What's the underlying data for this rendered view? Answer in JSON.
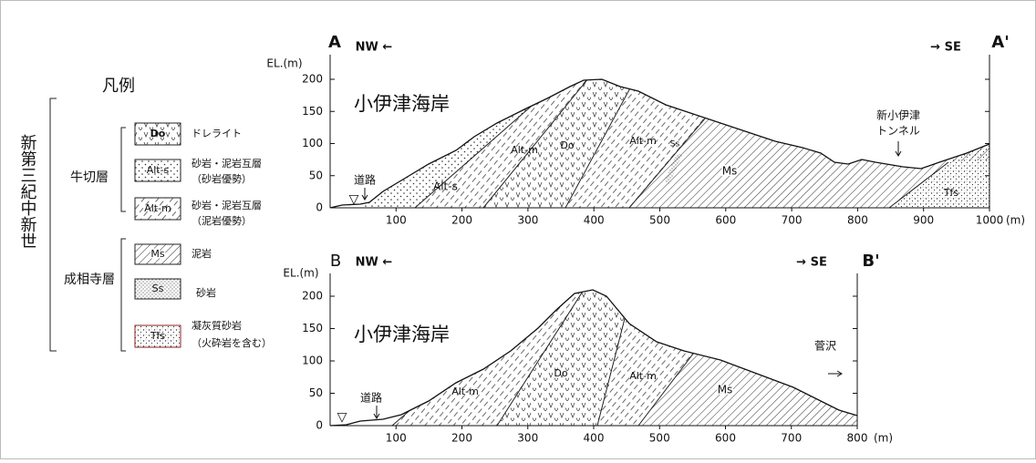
{
  "legend": {
    "title": "凡例",
    "era": "新第三紀中新世",
    "groups": [
      {
        "name": "牛切層",
        "items": [
          {
            "symbol": "Do",
            "label": "ドレライト"
          },
          {
            "symbol": "Alt-s",
            "label": "砂岩・泥岩互層",
            "note": "（砂岩優勢）"
          },
          {
            "symbol": "Alt-m",
            "label": "砂岩・泥岩互層",
            "note": "（泥岩優勢）"
          }
        ]
      },
      {
        "name": "成相寺層",
        "items": [
          {
            "symbol": "Ms",
            "label": "泥岩"
          },
          {
            "symbol": "Ss",
            "label": "砂岩"
          },
          {
            "symbol": "Tfs",
            "label": "凝灰質砂岩",
            "note": "（火砕岩を含む）"
          }
        ]
      }
    ]
  },
  "sections": [
    {
      "left_id": "A",
      "right_id": "A'",
      "left_dir": "NW ←",
      "right_dir": "→ SE",
      "y_axis_label": "EL.(m)",
      "x_unit": "(m)",
      "yticks": [
        0,
        50,
        100,
        150,
        200
      ],
      "xticks": [
        100,
        200,
        300,
        400,
        500,
        600,
        700,
        800,
        900,
        1000
      ],
      "place": "小伊津海岸",
      "road": "道路",
      "units": [
        "Alt-s",
        "Alt-m",
        "Do",
        "Alt-m",
        "Ms",
        "Ss",
        "Tfs"
      ],
      "tunnel": [
        "新小伊津",
        "トンネル"
      ]
    },
    {
      "left_id": "B",
      "right_id": "B'",
      "left_dir": "NW ←",
      "right_dir": "→ SE",
      "y_axis_label": "EL.(m)",
      "x_unit": "(m)",
      "yticks": [
        0,
        50,
        100,
        150,
        200
      ],
      "xticks": [
        100,
        200,
        300,
        400,
        500,
        600,
        700,
        800
      ],
      "place": "小伊津海岸",
      "road": "道路",
      "units": [
        "Alt-m",
        "Do",
        "Alt-m",
        "Ms"
      ],
      "destination": "菅沢"
    }
  ]
}
